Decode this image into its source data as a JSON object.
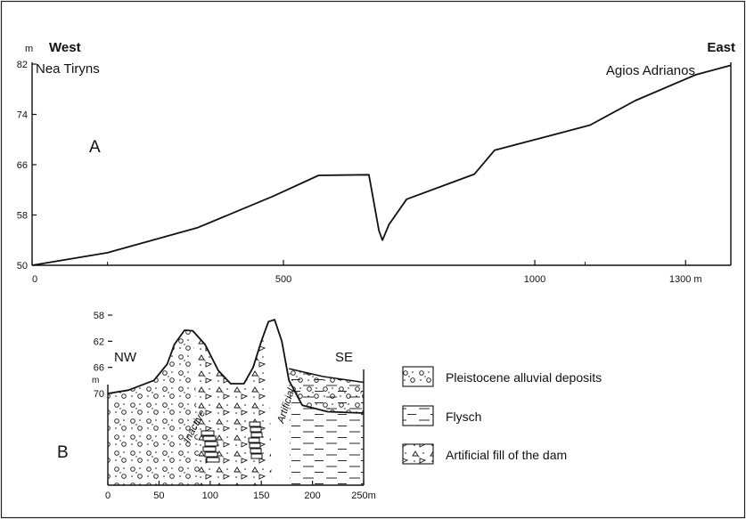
{
  "profile_a": {
    "panel_label": "A",
    "unit_label": "m",
    "west_label": "West",
    "east_label": "East",
    "west_place": "Nea Tiryns",
    "east_place": "Agios Adrianos",
    "y_ticks": [
      "82",
      "74",
      "66",
      "58",
      "50"
    ],
    "x_ticks": [
      "0",
      "500",
      "1000",
      "1300 m"
    ],
    "surface": [
      {
        "x": 0,
        "y": 50
      },
      {
        "x": 150,
        "y": 52
      },
      {
        "x": 330,
        "y": 56
      },
      {
        "x": 480,
        "y": 61
      },
      {
        "x": 570,
        "y": 64.3
      },
      {
        "x": 670,
        "y": 64.4
      },
      {
        "x": 690,
        "y": 55.5
      },
      {
        "x": 697,
        "y": 54
      },
      {
        "x": 710,
        "y": 56.5
      },
      {
        "x": 745,
        "y": 60.5
      },
      {
        "x": 880,
        "y": 64.5
      },
      {
        "x": 920,
        "y": 68.3
      },
      {
        "x": 1110,
        "y": 72.3
      },
      {
        "x": 1200,
        "y": 76.2
      },
      {
        "x": 1320,
        "y": 80.3
      },
      {
        "x": 1390,
        "y": 81.8
      }
    ]
  },
  "profile_b": {
    "panel_label": "B",
    "nw_label": "NW",
    "se_label": "SE",
    "unit_label": "m",
    "y_ticks": [
      "70",
      "66",
      "62",
      "58"
    ],
    "x_ticks": [
      "0",
      "50",
      "100",
      "150",
      "200",
      "250m"
    ],
    "channel_inactive": "Inactive",
    "channel_artificial": "Artificial",
    "surface": [
      {
        "x": 0,
        "y": 70
      },
      {
        "x": 20,
        "y": 69.5
      },
      {
        "x": 45,
        "y": 68
      },
      {
        "x": 58,
        "y": 65.5
      },
      {
        "x": 65,
        "y": 62.5
      },
      {
        "x": 75,
        "y": 60.3
      },
      {
        "x": 83,
        "y": 60.4
      },
      {
        "x": 95,
        "y": 62.5
      },
      {
        "x": 108,
        "y": 66.5
      },
      {
        "x": 120,
        "y": 68.5
      },
      {
        "x": 133,
        "y": 68.5
      },
      {
        "x": 142,
        "y": 66
      },
      {
        "x": 150,
        "y": 62
      },
      {
        "x": 157,
        "y": 59
      },
      {
        "x": 163,
        "y": 58.7
      },
      {
        "x": 170,
        "y": 62
      },
      {
        "x": 177,
        "y": 68
      },
      {
        "x": 190,
        "y": 71.8
      },
      {
        "x": 215,
        "y": 72.8
      },
      {
        "x": 250,
        "y": 73
      }
    ],
    "flysch_top": [
      {
        "x": 177,
        "y": 66.2
      },
      {
        "x": 210,
        "y": 67.4
      },
      {
        "x": 250,
        "y": 68.3
      }
    ]
  },
  "legend": {
    "items": [
      {
        "id": "pleistocene",
        "label": "Pleistocene  alluvial  deposits"
      },
      {
        "id": "flysch",
        "label": "Flysch"
      },
      {
        "id": "fill",
        "label": "Artificial fill of the dam"
      }
    ]
  }
}
